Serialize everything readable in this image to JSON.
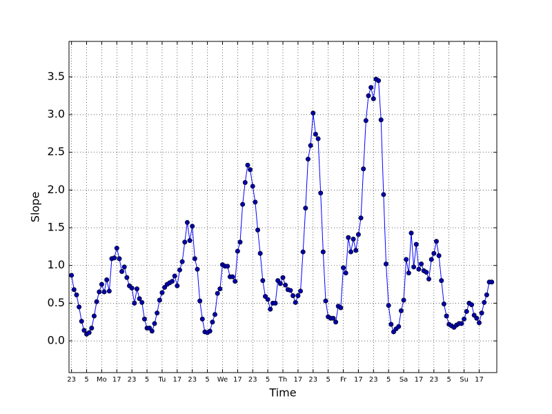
{
  "chart_data": {
    "type": "line",
    "xlabel": "Time",
    "ylabel": "Slope",
    "x": [
      0,
      1,
      2,
      3,
      4,
      5,
      6,
      7,
      8,
      9,
      10,
      11,
      12,
      13,
      14,
      15,
      16,
      17,
      18,
      19,
      20,
      21,
      22,
      23,
      24,
      25,
      26,
      27,
      28,
      29,
      30,
      31,
      32,
      33,
      34,
      35,
      36,
      37,
      38,
      39,
      40,
      41,
      42,
      43,
      44,
      45,
      46,
      47,
      48,
      49,
      50,
      51,
      52,
      53,
      54,
      55,
      56,
      57,
      58,
      59,
      60,
      61,
      62,
      63,
      64,
      65,
      66,
      67,
      68,
      69,
      70,
      71,
      72,
      73,
      74,
      75,
      76,
      77,
      78,
      79,
      80,
      81,
      82,
      83,
      84,
      85,
      86,
      87,
      88,
      89,
      90,
      91,
      92,
      93,
      94,
      95,
      96,
      97,
      98,
      99,
      100,
      101,
      102,
      103,
      104,
      105,
      106,
      107,
      108,
      109,
      110,
      111,
      112,
      113,
      114,
      115,
      116,
      117,
      118,
      119,
      120,
      121,
      122,
      123,
      124,
      125,
      126,
      127,
      128,
      129,
      130,
      131,
      132,
      133,
      134,
      135,
      136,
      137,
      138,
      139,
      140,
      141,
      142,
      143,
      144,
      145,
      146,
      147,
      148,
      149,
      150,
      151,
      152,
      153,
      154,
      155,
      156,
      157,
      158,
      159,
      160,
      161,
      162,
      163,
      164,
      165,
      166,
      167
    ],
    "series": [
      {
        "color": "#0000ff",
        "marker_color": "#0000aa",
        "values": [
          0.87,
          0.68,
          0.61,
          0.45,
          0.26,
          0.14,
          0.09,
          0.11,
          0.17,
          0.33,
          0.52,
          0.65,
          0.75,
          0.65,
          0.81,
          0.66,
          1.09,
          1.1,
          1.23,
          1.09,
          0.92,
          0.98,
          0.84,
          0.73,
          0.7,
          0.5,
          0.69,
          0.56,
          0.51,
          0.29,
          0.17,
          0.17,
          0.13,
          0.23,
          0.37,
          0.54,
          0.64,
          0.71,
          0.75,
          0.77,
          0.79,
          0.86,
          0.73,
          0.94,
          1.05,
          1.31,
          1.57,
          1.33,
          1.52,
          1.09,
          0.95,
          0.53,
          0.29,
          0.12,
          0.11,
          0.13,
          0.25,
          0.35,
          0.63,
          0.69,
          1.01,
          0.99,
          0.99,
          0.85,
          0.85,
          0.79,
          1.19,
          1.31,
          1.81,
          2.1,
          2.33,
          2.27,
          2.05,
          1.84,
          1.47,
          1.16,
          0.8,
          0.59,
          0.55,
          0.42,
          0.5,
          0.5,
          0.8,
          0.76,
          0.84,
          0.74,
          0.68,
          0.67,
          0.6,
          0.51,
          0.6,
          0.66,
          1.18,
          1.76,
          2.41,
          2.59,
          3.02,
          2.74,
          2.68,
          1.96,
          1.18,
          0.53,
          0.32,
          0.3,
          0.3,
          0.25,
          0.46,
          0.44,
          0.97,
          0.9,
          1.37,
          1.18,
          1.35,
          1.2,
          1.41,
          1.63,
          2.28,
          2.92,
          3.25,
          3.36,
          3.21,
          3.47,
          3.45,
          2.93,
          1.94,
          1.02,
          0.47,
          0.22,
          0.12,
          0.16,
          0.19,
          0.4,
          0.54,
          1.08,
          0.9,
          1.43,
          0.98,
          1.28,
          0.95,
          1.02,
          0.93,
          0.91,
          0.82,
          1.08,
          1.16,
          1.32,
          1.13,
          0.8,
          0.49,
          0.33,
          0.22,
          0.2,
          0.18,
          0.21,
          0.23,
          0.23,
          0.29,
          0.39,
          0.5,
          0.48,
          0.34,
          0.3,
          0.24,
          0.37,
          0.51,
          0.61,
          0.78,
          0.78
        ]
      }
    ],
    "xlim": [
      -1,
      169
    ],
    "ylim": [
      -0.42,
      3.97
    ],
    "xticks": [
      {
        "value": 0,
        "label": "23"
      },
      {
        "value": 6,
        "label": "5"
      },
      {
        "value": 12,
        "label": "Mo"
      },
      {
        "value": 18,
        "label": "17"
      },
      {
        "value": 24,
        "label": "23"
      },
      {
        "value": 30,
        "label": "5"
      },
      {
        "value": 36,
        "label": "Tu"
      },
      {
        "value": 42,
        "label": "17"
      },
      {
        "value": 48,
        "label": "23"
      },
      {
        "value": 54,
        "label": "5"
      },
      {
        "value": 60,
        "label": "We"
      },
      {
        "value": 66,
        "label": "17"
      },
      {
        "value": 72,
        "label": "23"
      },
      {
        "value": 78,
        "label": "5"
      },
      {
        "value": 84,
        "label": "Th"
      },
      {
        "value": 90,
        "label": "17"
      },
      {
        "value": 96,
        "label": "23"
      },
      {
        "value": 102,
        "label": "5"
      },
      {
        "value": 108,
        "label": "Fr"
      },
      {
        "value": 114,
        "label": "17"
      },
      {
        "value": 120,
        "label": "23"
      },
      {
        "value": 126,
        "label": "5"
      },
      {
        "value": 132,
        "label": "Sa"
      },
      {
        "value": 138,
        "label": "17"
      },
      {
        "value": 144,
        "label": "23"
      },
      {
        "value": 150,
        "label": "5"
      },
      {
        "value": 156,
        "label": "Su"
      },
      {
        "value": 162,
        "label": "17"
      }
    ],
    "yticks": [
      {
        "value": 0,
        "label": "0.0"
      },
      0.5,
      {
        "value": 1,
        "label": "1.0"
      },
      1.5,
      {
        "value": 2,
        "label": "2.0"
      },
      2.5,
      {
        "value": 3,
        "label": "3.0"
      },
      3.5
    ],
    "grid": true
  }
}
